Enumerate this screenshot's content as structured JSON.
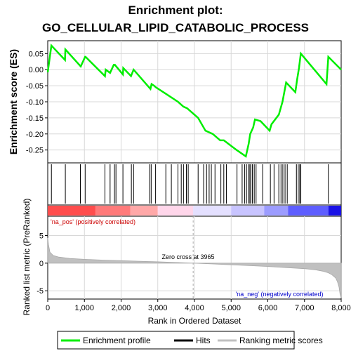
{
  "title_line1": "Enrichment plot:",
  "title_line2": "GO_CELLULAR_LIPID_CATABOLIC_PROCESS",
  "colors": {
    "enrichment_line": "#00ee00",
    "hit": "#000000",
    "ranking_fill": "#c0c0c0",
    "pos_text": "#cc0000",
    "neg_text": "#0000cc",
    "zero_line": "#aaaaaa"
  },
  "chart_data": [
    {
      "type": "line",
      "name": "enrichment-profile",
      "ylabel": "Enrichment score (ES)",
      "xlim": [
        0,
        8000
      ],
      "ylim": [
        -0.29,
        0.09
      ],
      "yticks": [
        0.05,
        0.0,
        -0.05,
        -0.1,
        -0.15,
        -0.2,
        -0.25
      ],
      "ytick_labels": [
        "0.05",
        "0.00",
        "-0.05",
        "-0.10",
        "-0.15",
        "-0.20",
        "-0.25"
      ],
      "grid": true,
      "x": [
        0,
        100,
        470,
        480,
        900,
        1020,
        1030,
        1560,
        1580,
        1700,
        1800,
        1830,
        2050,
        2060,
        2270,
        2340,
        2800,
        2830,
        2900,
        2950,
        3220,
        3550,
        3700,
        3800,
        4100,
        4300,
        4500,
        4700,
        4800,
        5150,
        5400,
        5480,
        5520,
        5600,
        5650,
        5800,
        6050,
        6100,
        6300,
        6400,
        6500,
        6750,
        6800,
        6850,
        6900,
        7600,
        7650,
        8000
      ],
      "y": [
        -0.008,
        0.075,
        0.03,
        0.063,
        0.01,
        0.04,
        0.04,
        -0.02,
        0.0,
        -0.01,
        0.015,
        0.015,
        -0.015,
        0.005,
        -0.02,
        0.0,
        -0.06,
        -0.045,
        -0.05,
        -0.055,
        -0.075,
        -0.1,
        -0.115,
        -0.12,
        -0.15,
        -0.19,
        -0.2,
        -0.22,
        -0.22,
        -0.25,
        -0.27,
        -0.23,
        -0.2,
        -0.18,
        -0.155,
        -0.16,
        -0.19,
        -0.17,
        -0.14,
        -0.1,
        -0.04,
        -0.07,
        -0.03,
        0.005,
        0.05,
        -0.045,
        0.04,
        0.0
      ]
    },
    {
      "type": "scatter",
      "name": "hits",
      "xlim": [
        0,
        8000
      ],
      "x": [
        100,
        480,
        890,
        1020,
        1560,
        1700,
        1820,
        1860,
        2050,
        2280,
        2340,
        2780,
        2820,
        2940,
        3220,
        3370,
        3550,
        3640,
        3700,
        3780,
        3830,
        4100,
        4250,
        4330,
        4400,
        4460,
        4560,
        4720,
        4800,
        4870,
        5160,
        5300,
        5370,
        5420,
        5470,
        5510,
        5540,
        5580,
        5630,
        5680,
        5860,
        6070,
        6170,
        6300,
        6360,
        6410,
        6470,
        6530,
        6780,
        6830,
        6870,
        6900,
        7650
      ]
    },
    {
      "type": "area",
      "name": "ranking-metric-scores",
      "ylabel": "Ranked list metric (PreRanked)",
      "xlabel": "Rank in Ordered Dataset",
      "xlim": [
        0,
        8000
      ],
      "ylim": [
        -6.5,
        8.5
      ],
      "yticks": [
        5,
        0,
        -5
      ],
      "ytick_labels": [
        "5",
        "0",
        "-5"
      ],
      "xticks": [
        0,
        1000,
        2000,
        3000,
        4000,
        5000,
        6000,
        7000,
        8000
      ],
      "xtick_labels": [
        "0",
        "1,000",
        "2,000",
        "3,000",
        "4,000",
        "5,000",
        "6,000",
        "7,000",
        "8,000"
      ],
      "x": [
        0,
        20,
        60,
        150,
        300,
        600,
        1000,
        1500,
        2000,
        2500,
        3000,
        3500,
        3965,
        4500,
        5000,
        5500,
        6000,
        6500,
        7000,
        7300,
        7500,
        7650,
        7750,
        7850,
        7900,
        7940,
        7970,
        8000
      ],
      "y": [
        4.6,
        3.4,
        2.0,
        1.4,
        1.1,
        0.85,
        0.7,
        0.55,
        0.45,
        0.35,
        0.25,
        0.12,
        0.0,
        -0.15,
        -0.3,
        -0.45,
        -0.6,
        -0.8,
        -1.0,
        -1.2,
        -1.45,
        -1.75,
        -2.1,
        -2.7,
        -3.4,
        -4.3,
        -5.6,
        -6.3
      ]
    }
  ],
  "heat_bar": {
    "zero_cross": 3965,
    "segments": [
      {
        "x0": 0,
        "x1": 1300,
        "color": "#ff4d4d"
      },
      {
        "x0": 1300,
        "x1": 2250,
        "color": "#ff7a7a"
      },
      {
        "x0": 2250,
        "x1": 3000,
        "color": "#ffa8a8"
      },
      {
        "x0": 3000,
        "x1": 3965,
        "color": "#ffd6ea"
      },
      {
        "x0": 3965,
        "x1": 5000,
        "color": "#e4e0ff"
      },
      {
        "x0": 5000,
        "x1": 5900,
        "color": "#c8c4ff"
      },
      {
        "x0": 5900,
        "x1": 6550,
        "color": "#9c9cff"
      },
      {
        "x0": 6550,
        "x1": 7650,
        "color": "#5e5eff"
      },
      {
        "x0": 7650,
        "x1": 8000,
        "color": "#1a12e6"
      }
    ]
  },
  "annotations": {
    "pos_label": "'na_pos' (positively correlated)",
    "neg_label": "'na_neg' (negatively correlated)",
    "zero_cross_label": "Zero cross at 3965"
  },
  "legend": {
    "items": [
      {
        "label": "Enrichment profile",
        "color": "#00ee00",
        "kind": "line"
      },
      {
        "label": "Hits",
        "color": "#000000",
        "kind": "line"
      },
      {
        "label": "Ranking metric scores",
        "color": "#c0c0c0",
        "kind": "line"
      }
    ]
  }
}
